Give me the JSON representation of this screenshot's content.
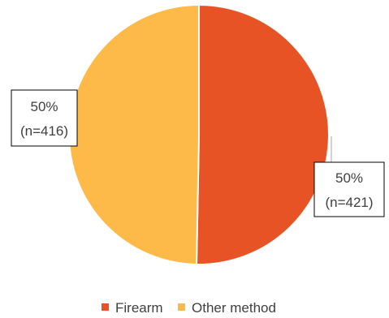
{
  "chart_data": {
    "type": "pie",
    "title": "",
    "slices": [
      {
        "name": "Firearm",
        "percent_label": "50%",
        "count_label": "(n=421)",
        "value": 421,
        "color": "#E85325"
      },
      {
        "name": "Other method",
        "percent_label": "50%",
        "count_label": "(n=416)",
        "value": 416,
        "color": "#FDBA48"
      }
    ],
    "legend_position": "bottom"
  }
}
